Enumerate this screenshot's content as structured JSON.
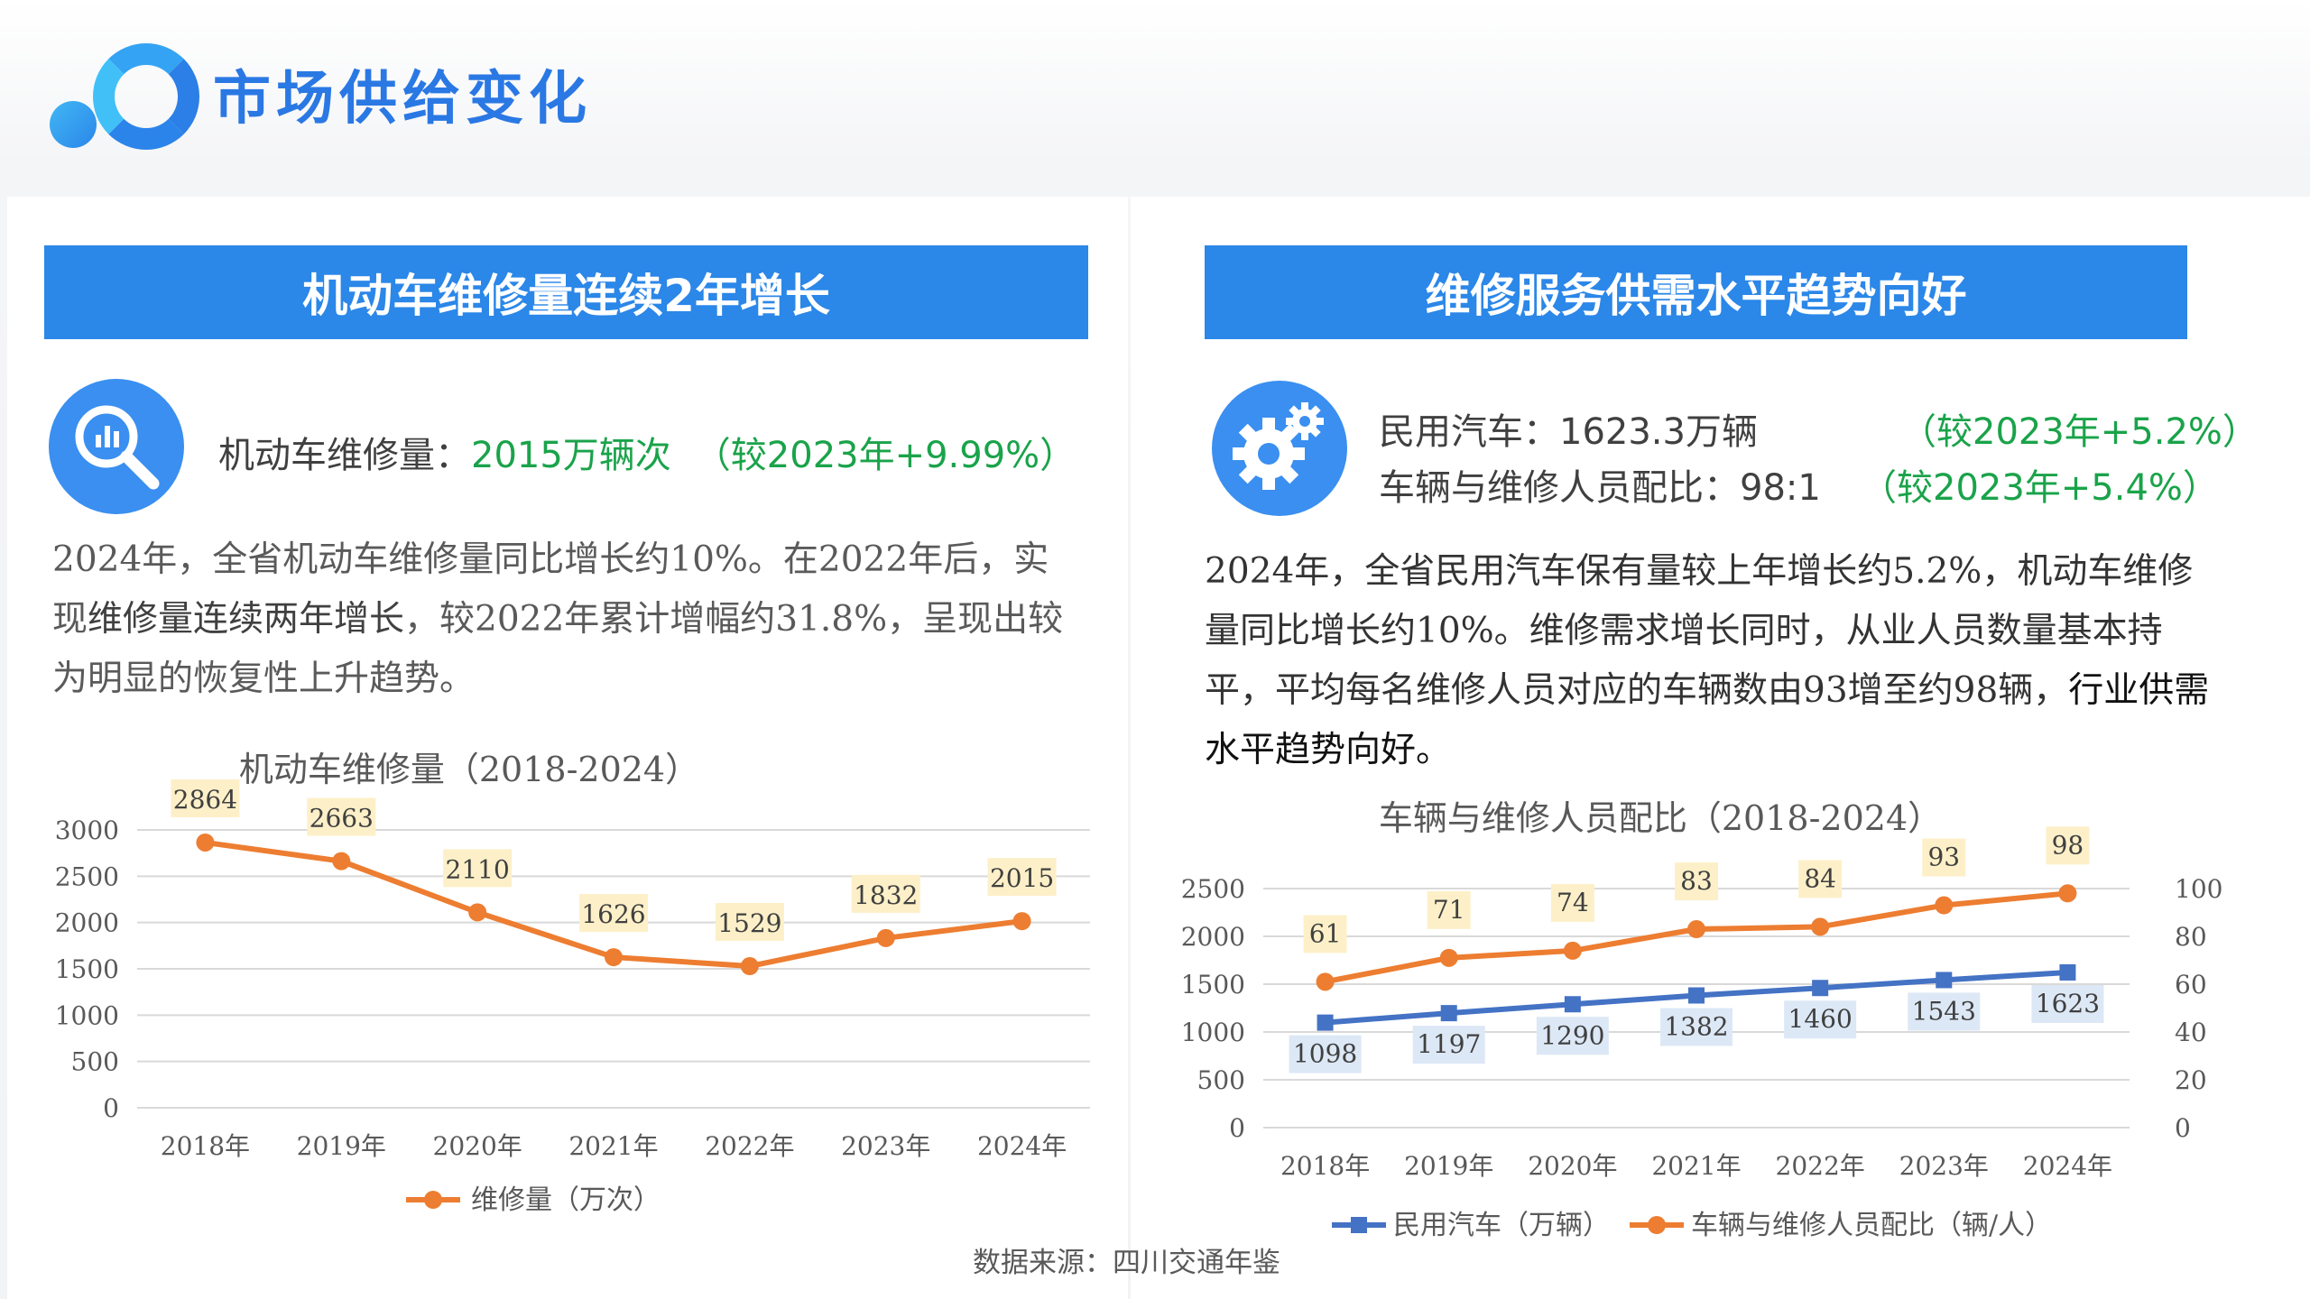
{
  "page": {
    "title": "市场供给变化",
    "source": "数据来源：四川交通年鉴"
  },
  "left": {
    "banner": "机动车维修量连续2年增长",
    "stat_label": "机动车维修量：",
    "stat_value": "2015万辆次",
    "stat_change": "（较2023年+9.99%）",
    "para_1": "2024年，全省机动车维修量同比增长约10%。在2022年后，实现",
    "para_2": "维修量连续两年增长",
    "para_3": "，较2022年累计增幅约31.8%，呈现出较为明显的恢复性上升趋势。"
  },
  "right": {
    "banner": "维修服务供需水平趋势向好",
    "stat1_label": "民用汽车：1623.3万辆",
    "stat1_change": "（较2023年+5.2%）",
    "stat2_label": "车辆与维修人员配比：98:1",
    "stat2_change": "（较2023年+5.4%）",
    "para_1": "2024年，全省民用汽车保有量较上年增长约5.2%，机动车维修量同比增长约10%。维修需求增长同时，从业人员数量基本持平，平均每名维修人员对应的车辆数由93增至约98辆，",
    "para_2": "行业供需水平趋势向好。"
  },
  "icons": {
    "left_badge": "magnifier-chart-icon",
    "right_badge": "gears-icon"
  },
  "colors": {
    "accent": "#2b87e8",
    "orange": "#ed7d31",
    "blue": "#4472c4",
    "green": "#1aa34a"
  },
  "chart_data": [
    {
      "type": "line",
      "title": "机动车维修量（2018-2024）",
      "categories": [
        "2018年",
        "2019年",
        "2020年",
        "2021年",
        "2022年",
        "2023年",
        "2024年"
      ],
      "series": [
        {
          "name": "维修量（万次）",
          "values": [
            2864,
            2663,
            2110,
            1626,
            1529,
            1832,
            2015
          ]
        }
      ],
      "ylim": [
        0,
        3000
      ],
      "yticks": [
        0,
        500,
        1000,
        1500,
        2000,
        2500,
        3000
      ],
      "grid": true,
      "legend": "bottom"
    },
    {
      "type": "line",
      "title": "车辆与维修人员配比（2018-2024）",
      "categories": [
        "2018年",
        "2019年",
        "2020年",
        "2021年",
        "2022年",
        "2023年",
        "2024年"
      ],
      "series": [
        {
          "name": "民用汽车（万辆）",
          "axis": "left",
          "values": [
            1098,
            1197,
            1290,
            1382,
            1460,
            1543,
            1623
          ]
        },
        {
          "name": "车辆与维修人员配比（辆/人）",
          "axis": "right",
          "values": [
            61,
            71,
            74,
            83,
            84,
            93,
            98
          ]
        }
      ],
      "ylim": [
        0,
        2500
      ],
      "yticks": [
        0,
        500,
        1000,
        1500,
        2000,
        2500
      ],
      "y2lim": [
        0,
        100
      ],
      "y2ticks": [
        0,
        20,
        40,
        60,
        80,
        100
      ],
      "grid": true,
      "legend": "bottom"
    }
  ]
}
